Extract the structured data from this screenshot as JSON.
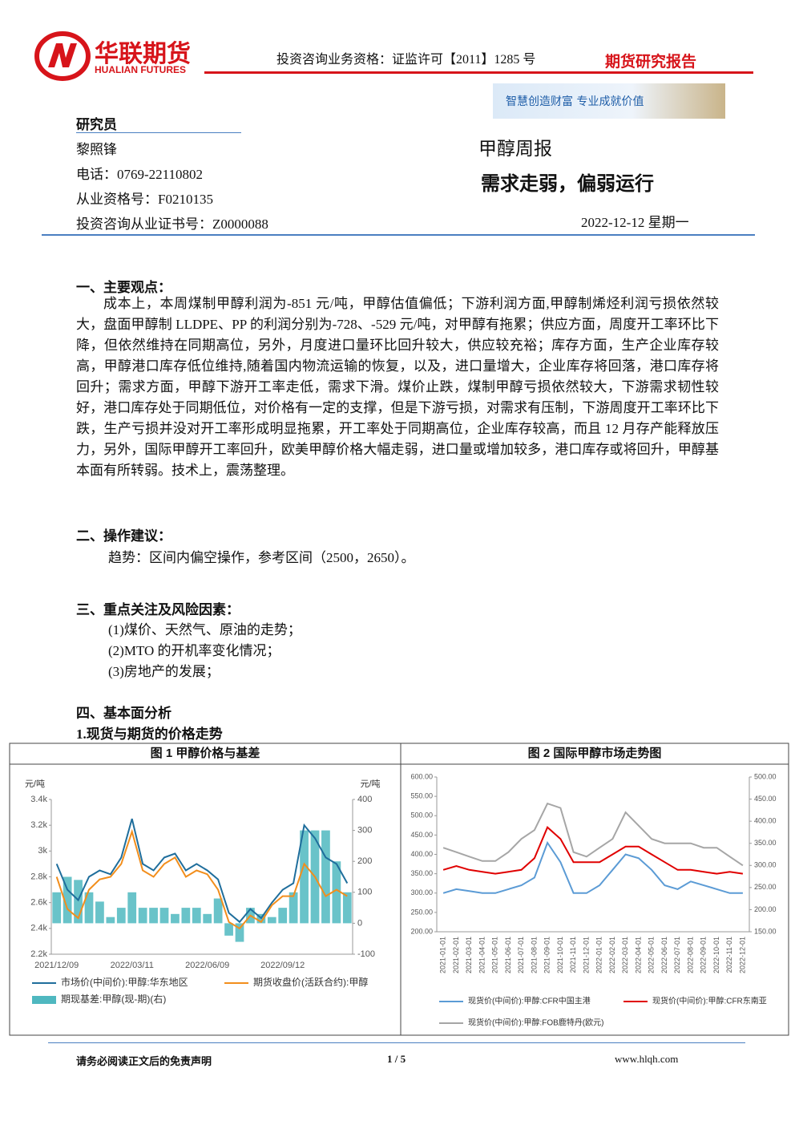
{
  "header": {
    "logo_cn": "华联期货",
    "logo_en": "HUALIAN FUTURES",
    "qualification": "投资咨询业务资格：证监许可【2011】1285 号",
    "report_type": "期货研究报告",
    "slogan": "智慧创造财富  专业成就价值"
  },
  "analyst": {
    "heading": "研究员",
    "name": "黎照锋",
    "phone": "电话：0769-22110802",
    "cert": "从业资格号：F0210135",
    "invest_cert": "投资咨询从业证书号：Z0000088"
  },
  "report": {
    "series": "甲醇周报",
    "title": "需求走弱，偏弱运行",
    "date": "2022-12-12 星期一"
  },
  "sections": [
    {
      "heading": "一、主要观点：",
      "paragraphs": [
        "成本上，本周煤制甲醇利润为-851 元/吨，甲醇估值偏低；下游利润方面,甲醇制烯烃利润亏损依然较大，盘面甲醇制 LLDPE、PP 的利润分别为-728、-529 元/吨，对甲醇有拖累；供应方面，周度开工率环比下降，但依然维持在同期高位，另外，月度进口量环比回升较大，供应较充裕；库存方面，生产企业库存较高，甲醇港口库存低位维持,随着国内物流运输的恢复，以及，进口量增大，企业库存将回落，港口库存将回升；需求方面，甲醇下游开工率走低，需求下滑。煤价止跌，煤制甲醇亏损依然较大，下游需求韧性较好，港口库存处于同期低位，对价格有一定的支撑，但是下游亏损，对需求有压制，下游周度开工率环比下跌，生产亏损并没对开工率形成明显拖累，开工率处于同期高位，企业库存较高，而且 12 月存产能释放压力，另外，国际甲醇开工率回升，欧美甲醇价格大幅走弱，进口量或增加较多，港口库存或将回升，甲醇基本面有所转弱。技术上，震荡整理。"
      ]
    },
    {
      "heading": "二、操作建议：",
      "paragraphs": [
        "趋势：区间内偏空操作，参考区间（2500，2650）。"
      ]
    },
    {
      "heading": "三、重点关注及风险因素：",
      "paragraphs": [
        "(1)煤价、天然气、原油的走势；",
        "(2)MTO 的开机率变化情况；",
        "(3)房地产的发展；"
      ]
    },
    {
      "heading": "四、基本面分析",
      "paragraphs": [
        "1.现货与期货的价格走势"
      ]
    }
  ],
  "chart_data": [
    {
      "type": "line",
      "title": "图 1  甲醇价格与基差",
      "y_unit": "元/吨",
      "y2_unit": "元/吨",
      "categories": [
        "2021/12/09",
        null,
        null,
        null,
        null,
        null,
        null,
        "2022/03/11",
        null,
        null,
        null,
        null,
        null,
        null,
        "2022/06/09",
        null,
        null,
        null,
        null,
        null,
        null,
        "2022/09/12",
        null,
        null,
        null,
        null,
        null,
        null
      ],
      "ylim": [
        2200,
        3400
      ],
      "yticks": [
        {
          "value": 2200,
          "label": "2.2k"
        },
        {
          "value": 2400,
          "label": "2.4k"
        },
        {
          "value": 2600,
          "label": "2.6k"
        },
        {
          "value": 2800,
          "label": "2.8k"
        },
        {
          "value": 3000,
          "label": "3k"
        },
        {
          "value": 3200,
          "label": "3.2k"
        },
        {
          "value": 3400,
          "label": "3.4k"
        }
      ],
      "y2lim": [
        -100,
        400
      ],
      "y2ticks": [
        -100,
        0,
        100,
        200,
        300,
        400
      ],
      "series": [
        {
          "name": "市场价(中间价):甲醇:华东地区",
          "color": "#1f6e9c",
          "values": [
            2900,
            2700,
            2620,
            2800,
            2850,
            2820,
            2950,
            3250,
            2900,
            2850,
            2950,
            2980,
            2850,
            2900,
            2850,
            2780,
            2520,
            2450,
            2550,
            2480,
            2600,
            2700,
            2750,
            3200,
            3100,
            2950,
            2900,
            2750
          ]
        },
        {
          "name": "期货收盘价(活跃合约):甲醇",
          "color": "#f28e1c",
          "values": [
            2800,
            2550,
            2480,
            2700,
            2780,
            2800,
            2900,
            3150,
            2850,
            2800,
            2900,
            2950,
            2800,
            2850,
            2820,
            2700,
            2450,
            2400,
            2500,
            2450,
            2580,
            2650,
            2650,
            2900,
            2800,
            2650,
            2700,
            2650
          ]
        },
        {
          "name": "期现基差:甲醇(现-期)(右)",
          "color": "#4fb8c0",
          "type": "bar",
          "axis": "y2",
          "values": [
            100,
            150,
            140,
            100,
            70,
            20,
            50,
            100,
            50,
            50,
            50,
            30,
            50,
            50,
            30,
            80,
            -40,
            -60,
            50,
            30,
            20,
            50,
            100,
            300,
            300,
            300,
            200,
            100
          ]
        }
      ]
    },
    {
      "type": "line",
      "title": "图 2  国际甲醇市场走势图",
      "categories": [
        "2021-01-01",
        "2021-02-01",
        "2021-03-01",
        "2021-04-01",
        "2021-05-01",
        "2021-06-01",
        "2021-07-01",
        "2021-08-01",
        "2021-09-01",
        "2021-10-01",
        "2021-11-01",
        "2021-12-01",
        "2022-01-01",
        "2022-02-01",
        "2022-03-01",
        "2022-04-01",
        "2022-05-01",
        "2022-06-01",
        "2022-07-01",
        "2022-08-01",
        "2022-09-01",
        "2022-10-01",
        "2022-11-01",
        "2022-12-01"
      ],
      "ylim": [
        200,
        600
      ],
      "yticks": [
        {
          "value": 200,
          "label": "200.00"
        },
        {
          "value": 250,
          "label": "250.00"
        },
        {
          "value": 300,
          "label": "300.00"
        },
        {
          "value": 350,
          "label": "350.00"
        },
        {
          "value": 400,
          "label": "400.00"
        },
        {
          "value": 450,
          "label": "450.00"
        },
        {
          "value": 500,
          "label": "500.00"
        },
        {
          "value": 550,
          "label": "550.00"
        },
        {
          "value": 600,
          "label": "600.00"
        }
      ],
      "y2lim": [
        150,
        500
      ],
      "y2ticks": [
        {
          "value": 150,
          "label": "150.00"
        },
        {
          "value": 200,
          "label": "200.00"
        },
        {
          "value": 250,
          "label": "250.00"
        },
        {
          "value": 300,
          "label": "300.00"
        },
        {
          "value": 350,
          "label": "350.00"
        },
        {
          "value": 400,
          "label": "400.00"
        },
        {
          "value": 450,
          "label": "450.00"
        },
        {
          "value": 500,
          "label": "500.00"
        }
      ],
      "series": [
        {
          "name": "现货价(中间价):甲醇:CFR中国主港",
          "color": "#5b9bd5",
          "values": [
            300,
            310,
            305,
            300,
            300,
            310,
            320,
            340,
            430,
            380,
            300,
            300,
            320,
            360,
            400,
            390,
            360,
            320,
            310,
            330,
            320,
            310,
            300,
            300
          ]
        },
        {
          "name": "现货价(中间价):甲醇:CFR东南亚",
          "color": "#e00000",
          "values": [
            360,
            370,
            360,
            355,
            350,
            355,
            360,
            390,
            470,
            440,
            380,
            380,
            380,
            400,
            420,
            420,
            400,
            380,
            360,
            360,
            355,
            350,
            355,
            350
          ]
        },
        {
          "name": "现货价(中间价):甲醇:FOB鹿特丹(欧元)",
          "color": "#a6a6a6",
          "axis": "y2",
          "values": [
            340,
            330,
            320,
            310,
            310,
            330,
            360,
            380,
            440,
            430,
            330,
            320,
            340,
            360,
            420,
            390,
            360,
            350,
            350,
            350,
            340,
            340,
            320,
            300
          ]
        }
      ]
    }
  ],
  "footer": {
    "disclaimer": "请务必阅读正文后的免责声明",
    "page": "1 / 5",
    "url": "www.hlqh.com"
  }
}
